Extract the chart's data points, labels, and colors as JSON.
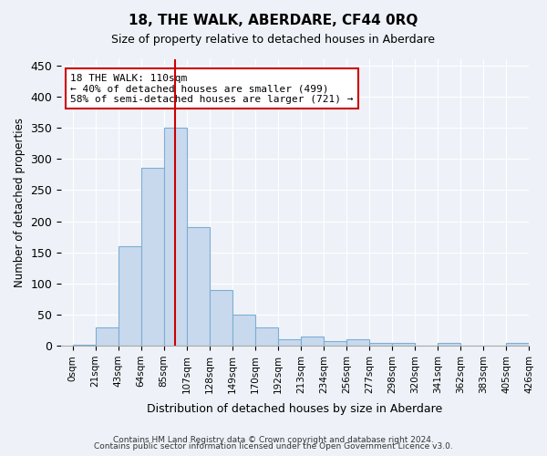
{
  "title": "18, THE WALK, ABERDARE, CF44 0RQ",
  "subtitle": "Size of property relative to detached houses in Aberdare",
  "xlabel": "Distribution of detached houses by size in Aberdare",
  "ylabel": "Number of detached properties",
  "bin_labels": [
    "0sqm",
    "21sqm",
    "43sqm",
    "64sqm",
    "85sqm",
    "107sqm",
    "128sqm",
    "149sqm",
    "170sqm",
    "192sqm",
    "213sqm",
    "234sqm",
    "256sqm",
    "277sqm",
    "298sqm",
    "320sqm",
    "341sqm",
    "362sqm",
    "383sqm",
    "405sqm",
    "426sqm"
  ],
  "bar_heights": [
    2,
    30,
    160,
    285,
    350,
    190,
    90,
    50,
    30,
    10,
    15,
    8,
    10,
    4,
    5,
    0,
    4,
    0,
    0,
    4
  ],
  "bar_color": "#c9d9ed",
  "bar_edge_color": "#7bafd4",
  "vline_x": 4.5,
  "vline_color": "#cc0000",
  "annotation_text": "18 THE WALK: 110sqm\n← 40% of detached houses are smaller (499)\n58% of semi-detached houses are larger (721) →",
  "annotation_box_color": "#ffffff",
  "annotation_box_edge": "#cc0000",
  "ylim": [
    0,
    460
  ],
  "yticks": [
    0,
    50,
    100,
    150,
    200,
    250,
    300,
    350,
    400,
    450
  ],
  "footer1": "Contains HM Land Registry data © Crown copyright and database right 2024.",
  "footer2": "Contains public sector information licensed under the Open Government Licence v3.0.",
  "bg_color": "#eef2f8",
  "plot_bg_color": "#eef2f8"
}
